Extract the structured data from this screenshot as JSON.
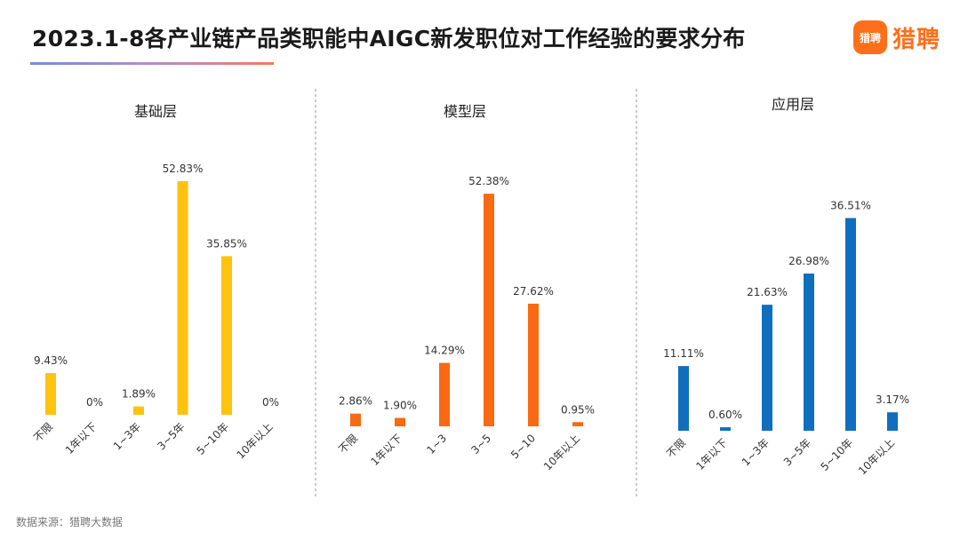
{
  "title": "2023.1-8各产业链产品类职能中AIGC新发职位对工作经验的要求分布",
  "logo": {
    "mark_text": "猎聘",
    "brand_text": "猎聘"
  },
  "source": "数据来源：猎聘大数据",
  "colors": {
    "panel_0": "#FFC20E",
    "panel_1": "#F96A12",
    "panel_2": "#0F6FBE"
  },
  "chart_data": [
    {
      "type": "bar",
      "title": "基础层",
      "categories": [
        "不限",
        "1年以下",
        "1~3年",
        "3~5年",
        "5~10年",
        "10年以上"
      ],
      "values": [
        9.43,
        0,
        1.89,
        52.83,
        35.85,
        0
      ],
      "labels": [
        "9.43%",
        "0%",
        "1.89%",
        "52.83%",
        "35.85%",
        "0%"
      ],
      "color": "#FFC20E"
    },
    {
      "type": "bar",
      "title": "模型层",
      "categories": [
        "不限",
        "1年以下",
        "1~3",
        "3~5",
        "5~10",
        "10年以上"
      ],
      "values": [
        2.86,
        1.9,
        14.29,
        52.38,
        27.62,
        0.95
      ],
      "labels": [
        "2.86%",
        "1.90%",
        "14.29%",
        "52.38%",
        "27.62%",
        "0.95%"
      ],
      "color": "#F96A12"
    },
    {
      "type": "bar",
      "title": "应用层",
      "categories": [
        "不限",
        "1年以下",
        "1~3年",
        "3~5年",
        "5~10年",
        "10年以上"
      ],
      "values": [
        11.11,
        0.6,
        21.63,
        26.98,
        36.51,
        3.17
      ],
      "labels": [
        "11.11%",
        "0.60%",
        "21.63%",
        "26.98%",
        "36.51%",
        "3.17%"
      ],
      "color": "#0F6FBE"
    }
  ]
}
